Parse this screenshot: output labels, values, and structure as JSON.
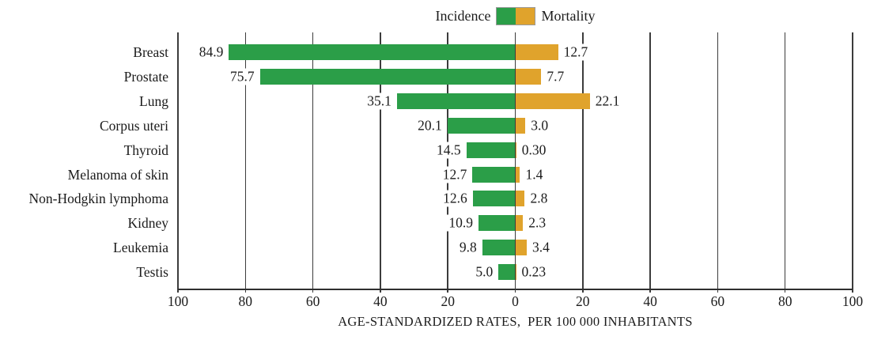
{
  "legend": {
    "incidence_label": "Incidence",
    "mortality_label": "Mortality"
  },
  "colors": {
    "incidence": "#2B9E48",
    "mortality": "#E0A32C",
    "grid": "#3C3C3C",
    "text": "#1B1B1B"
  },
  "axis": {
    "title": "AGE-STANDARDIZED RATES,  PER 100 000 INHABITANTS",
    "tick_labels": [
      "100",
      "80",
      "60",
      "40",
      "20",
      "0",
      "20",
      "40",
      "60",
      "80",
      "100"
    ]
  },
  "chart_data": {
    "type": "bar",
    "orientation": "horizontal-diverging",
    "title": "",
    "xlabel": "AGE-STANDARDIZED RATES,  PER 100 000 INHABITANTS",
    "x_ticks": [
      100,
      80,
      60,
      40,
      20,
      0,
      20,
      40,
      60,
      80,
      100
    ],
    "xlim_left": [
      100,
      0
    ],
    "xlim_right": [
      0,
      100
    ],
    "grid": true,
    "legend_position": "top-center",
    "categories": [
      "Breast",
      "Prostate",
      "Lung",
      "Corpus uteri",
      "Thyroid",
      "Melanoma of skin",
      "Non-Hodgkin lymphoma",
      "Kidney",
      "Leukemia",
      "Testis"
    ],
    "series": [
      {
        "name": "Incidence",
        "direction": "left",
        "color": "#2B9E48",
        "values": [
          84.9,
          75.7,
          35.1,
          20.1,
          14.5,
          12.7,
          12.6,
          10.9,
          9.8,
          5.0
        ],
        "labels": [
          "84.9",
          "75.7",
          "35.1",
          "20.1",
          "14.5",
          "12.7",
          "12.6",
          "10.9",
          "9.8",
          "5.0"
        ]
      },
      {
        "name": "Mortality",
        "direction": "right",
        "color": "#E0A32C",
        "values": [
          12.7,
          7.7,
          22.1,
          3.0,
          0.3,
          1.4,
          2.8,
          2.3,
          3.4,
          0.23
        ],
        "labels": [
          "12.7",
          "7.7",
          "22.1",
          "3.0",
          "0.30",
          "1.4",
          "2.8",
          "2.3",
          "3.4",
          "0.23"
        ]
      }
    ]
  }
}
